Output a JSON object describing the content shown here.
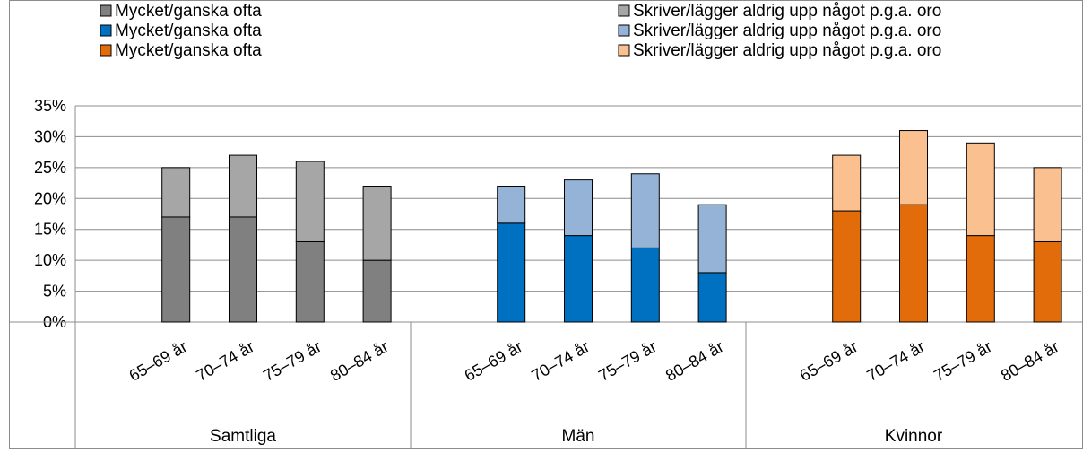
{
  "chart_data": {
    "type": "bar",
    "stacked": true,
    "groups": [
      {
        "name": "Samtliga",
        "categories": [
          "65–69 år",
          "70–74 år",
          "75–79 år",
          "80–84 år"
        ],
        "series": [
          {
            "name": "Mycket/ganska ofta",
            "color": "#808080",
            "values": [
              17,
              17,
              13,
              10
            ]
          },
          {
            "name": "Skriver/lägger aldrig upp något p.g.a. oro",
            "color": "#a6a6a6",
            "values": [
              8,
              10,
              13,
              12
            ]
          }
        ]
      },
      {
        "name": "Män",
        "categories": [
          "65–69 år",
          "70–74 år",
          "75–79 år",
          "80–84 år"
        ],
        "series": [
          {
            "name": "Mycket/ganska ofta",
            "color": "#0070c0",
            "values": [
              16,
              14,
              12,
              8
            ]
          },
          {
            "name": "Skriver/lägger aldrig upp något p.g.a. oro",
            "color": "#95b3d7",
            "values": [
              6,
              9,
              12,
              11
            ]
          }
        ]
      },
      {
        "name": "Kvinnor",
        "categories": [
          "65–69 år",
          "70–74 år",
          "75–79 år",
          "80–84 år"
        ],
        "series": [
          {
            "name": "Mycket/ganska ofta",
            "color": "#e36c0a",
            "values": [
              18,
              19,
              14,
              13
            ]
          },
          {
            "name": "Skriver/lägger aldrig upp något p.g.a. oro",
            "color": "#fac090",
            "values": [
              9,
              12,
              15,
              12
            ]
          }
        ]
      }
    ],
    "y_ticks": [
      "0%",
      "5%",
      "10%",
      "15%",
      "20%",
      "25%",
      "30%",
      "35%"
    ],
    "ylim": [
      0,
      35
    ],
    "y_unit": "%",
    "grid": true,
    "legend_position": "top"
  }
}
